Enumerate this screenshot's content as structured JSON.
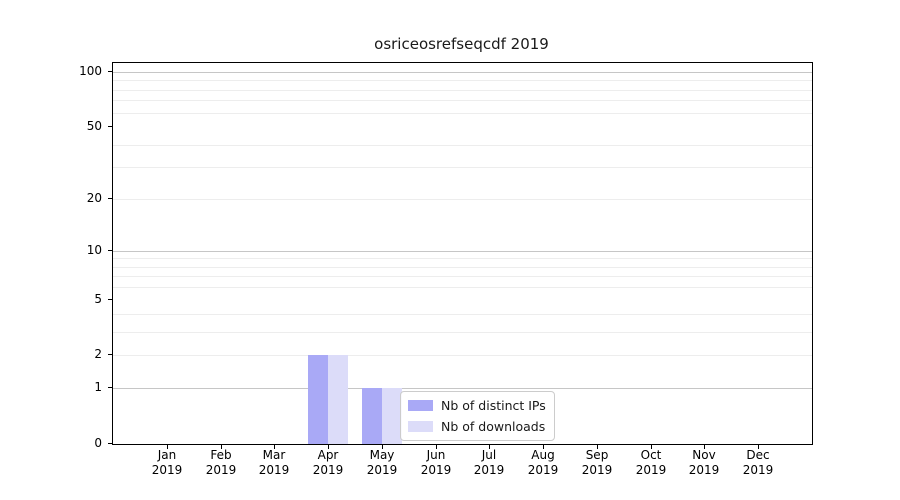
{
  "figure": {
    "background": "#ffffff"
  },
  "chart_data": {
    "type": "bar",
    "title": "osriceosrefseqcdf 2019",
    "categories": [
      "Jan 2019",
      "Feb 2019",
      "Mar 2019",
      "Apr 2019",
      "May 2019",
      "Jun 2019",
      "Jul 2019",
      "Aug 2019",
      "Sep 2019",
      "Oct 2019",
      "Nov 2019",
      "Dec 2019"
    ],
    "x_tick_month": [
      "Jan",
      "Feb",
      "Mar",
      "Apr",
      "May",
      "Jun",
      "Jul",
      "Aug",
      "Sep",
      "Oct",
      "Nov",
      "Dec"
    ],
    "x_tick_year": [
      "2019",
      "2019",
      "2019",
      "2019",
      "2019",
      "2019",
      "2019",
      "2019",
      "2019",
      "2019",
      "2019",
      "2019"
    ],
    "series": [
      {
        "name": "Nb of distinct IPs",
        "color": "#a9a9f6",
        "values": [
          0,
          0,
          0,
          2,
          1,
          0,
          0,
          0,
          0,
          0,
          0,
          0
        ]
      },
      {
        "name": "Nb of downloads",
        "color": "#dcdcf9",
        "values": [
          0,
          0,
          0,
          2,
          1,
          0,
          0,
          0,
          0,
          0,
          0,
          0
        ]
      }
    ],
    "xlabel": "",
    "ylabel": "",
    "yscale": "log1p",
    "ylim": [
      0,
      100
    ],
    "y_tick_values": [
      0,
      1,
      2,
      5,
      10,
      20,
      50,
      100
    ],
    "y_major_gridlines": [
      1,
      10,
      100
    ],
    "y_minor_gridlines": [
      2,
      3,
      4,
      6,
      7,
      8,
      9,
      20,
      30,
      40,
      60,
      70,
      80,
      90
    ],
    "grid": true,
    "legend_position": "lower center"
  },
  "legend": {
    "items": [
      {
        "label": "Nb of distinct IPs",
        "color": "#a9a9f6"
      },
      {
        "label": "Nb of downloads",
        "color": "#dcdcf9"
      }
    ]
  },
  "colors": {
    "major_grid": "#c6c6c6",
    "minor_grid": "#ededed",
    "spine": "#000000",
    "text": "#1a1a1a"
  }
}
